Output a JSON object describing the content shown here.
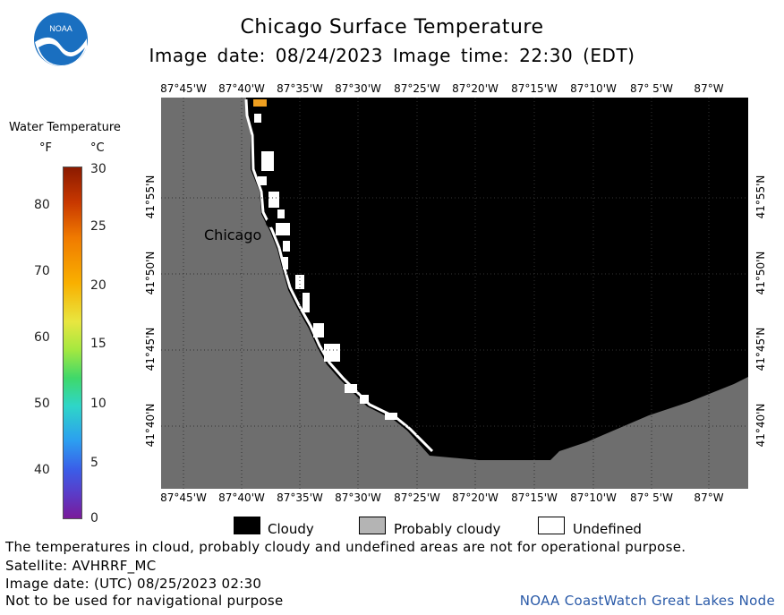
{
  "header": {
    "title": "Chicago Surface Temperature",
    "subtitle": "Image date: 08/24/2023    Image time: 22:30 (EDT)",
    "logo_text": "NOAA"
  },
  "map": {
    "longitude_labels": [
      "87°45'W",
      "87°40'W",
      "87°35'W",
      "87°30'W",
      "87°25'W",
      "87°20'W",
      "87°15'W",
      "87°10'W",
      "87° 5'W",
      "87°W"
    ],
    "latitude_labels": [
      "41°55'N",
      "41°50'N",
      "41°45'N",
      "41°40'N"
    ],
    "city_label": "Chicago",
    "colors": {
      "land": "#6e6e6e",
      "water_cloudy": "#000000",
      "undefined": "#ffffff",
      "probably_cloudy": "#b4b4b4",
      "warm_pixel": "#f0a020"
    }
  },
  "legend": {
    "title": "Water Temperature",
    "unit_f": "°F",
    "unit_c": "°C",
    "fahrenheit_ticks": [
      "80",
      "70",
      "60",
      "50",
      "40"
    ],
    "celsius_ticks": [
      "30",
      "25",
      "20",
      "15",
      "10",
      "5",
      "0"
    ]
  },
  "key": {
    "cloudy": "Cloudy",
    "probably_cloudy": "Probably cloudy",
    "undefined": "Undefined"
  },
  "footer": {
    "note": "The temperatures in cloud, probably cloudy and undefined areas are not for operational purpose.",
    "satellite": "Satellite: AVHRRF_MC",
    "utc_date": "Image date: (UTC) 08/25/2023  02:30",
    "disclaimer": "Not to be used for navigational purpose",
    "credit": "NOAA CoastWatch Great Lakes Node"
  }
}
